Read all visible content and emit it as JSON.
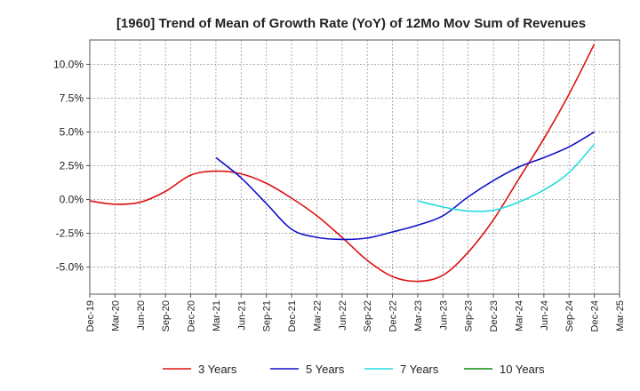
{
  "chart_data": {
    "type": "line",
    "title": "[1960]  Trend of Mean of Growth Rate (YoY) of 12Mo Mov Sum of Revenues",
    "xlabel": "",
    "ylabel": "",
    "ylim": [
      -7.0,
      11.8
    ],
    "y_ticks": [
      -5.0,
      -2.5,
      0.0,
      2.5,
      5.0,
      7.5,
      10.0
    ],
    "y_tick_labels": [
      "-5.0%",
      "-2.5%",
      "0.0%",
      "2.5%",
      "5.0%",
      "7.5%",
      "10.0%"
    ],
    "x_tick_labels": [
      "Dec-19",
      "Mar-20",
      "Jun-20",
      "Sep-20",
      "Dec-20",
      "Mar-21",
      "Jun-21",
      "Sep-21",
      "Dec-21",
      "Mar-22",
      "Jun-22",
      "Sep-22",
      "Dec-22",
      "Mar-23",
      "Jun-23",
      "Sep-23",
      "Dec-23",
      "Mar-24",
      "Jun-24",
      "Sep-24",
      "Dec-24",
      "Mar-25"
    ],
    "grid": true,
    "legend_position": "bottom",
    "series": [
      {
        "name": "3 Years",
        "color": "#dd1111",
        "points": [
          [
            0,
            -0.1
          ],
          [
            1,
            -0.35
          ],
          [
            2,
            -0.2
          ],
          [
            3,
            0.6
          ],
          [
            4,
            1.8
          ],
          [
            5,
            2.1
          ],
          [
            6,
            1.9
          ],
          [
            7,
            1.2
          ],
          [
            8,
            0.1
          ],
          [
            9,
            -1.2
          ],
          [
            10,
            -2.8
          ],
          [
            11,
            -4.5
          ],
          [
            12,
            -5.7
          ],
          [
            13,
            -6.05
          ],
          [
            14,
            -5.6
          ],
          [
            15,
            -3.9
          ],
          [
            16,
            -1.5
          ],
          [
            17,
            1.5
          ],
          [
            18,
            4.5
          ],
          [
            19,
            7.8
          ],
          [
            20,
            11.5
          ]
        ]
      },
      {
        "name": "5 Years",
        "color": "#1111cc",
        "points": [
          [
            5,
            3.1
          ],
          [
            6,
            1.6
          ],
          [
            7,
            -0.3
          ],
          [
            8,
            -2.2
          ],
          [
            9,
            -2.8
          ],
          [
            10,
            -2.95
          ],
          [
            11,
            -2.85
          ],
          [
            12,
            -2.4
          ],
          [
            13,
            -1.9
          ],
          [
            14,
            -1.2
          ],
          [
            15,
            0.2
          ],
          [
            16,
            1.4
          ],
          [
            17,
            2.4
          ],
          [
            18,
            3.1
          ],
          [
            19,
            3.9
          ],
          [
            20,
            5.0
          ]
        ]
      },
      {
        "name": "7 Years",
        "color": "#22dddd",
        "points": [
          [
            13,
            -0.1
          ],
          [
            14,
            -0.55
          ],
          [
            15,
            -0.85
          ],
          [
            16,
            -0.8
          ],
          [
            17,
            -0.2
          ],
          [
            18,
            0.7
          ],
          [
            19,
            2.0
          ],
          [
            20,
            4.1
          ]
        ]
      },
      {
        "name": "10 Years",
        "color": "#118811",
        "points": []
      }
    ]
  }
}
